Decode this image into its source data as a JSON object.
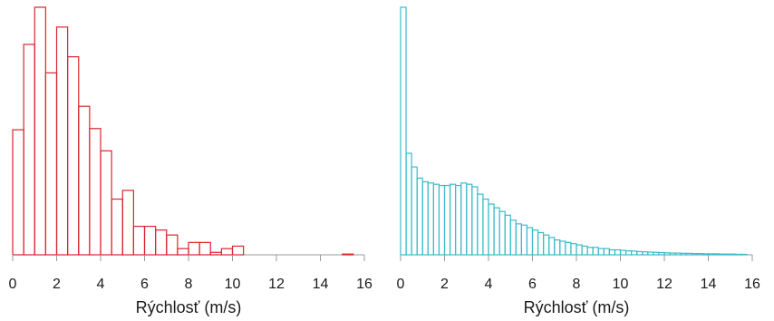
{
  "chart_data": [
    {
      "type": "bar",
      "subtype": "histogram",
      "color": "#d9262e",
      "xlabel": "Rýchlosť (m/s)",
      "xlim": [
        0,
        16
      ],
      "xticks": [
        0,
        2,
        4,
        6,
        8,
        10,
        12,
        14,
        16
      ],
      "grid": false,
      "bin_width": 0.5,
      "bin_edges_start": 0,
      "relative_heights": [
        0.505,
        0.85,
        1.0,
        0.735,
        0.92,
        0.8,
        0.6,
        0.51,
        0.42,
        0.225,
        0.26,
        0.115,
        0.115,
        0.1,
        0.08,
        0.025,
        0.05,
        0.05,
        0.01,
        0.025,
        0.035,
        0,
        0,
        0,
        0,
        0,
        0,
        0,
        0,
        0,
        0.003
      ],
      "notes": "bars shown as outlines; no y-axis scale printed"
    },
    {
      "type": "bar",
      "subtype": "histogram",
      "color": "#3bbcc8",
      "xlabel": "Rýchlosť (m/s)",
      "xlim": [
        0,
        16
      ],
      "xticks": [
        0,
        2,
        4,
        6,
        8,
        10,
        12,
        14,
        16
      ],
      "grid": false,
      "bin_width": 0.25,
      "bin_edges_start": 0,
      "relative_heights": [
        1.0,
        0.41,
        0.355,
        0.31,
        0.295,
        0.29,
        0.285,
        0.28,
        0.28,
        0.285,
        0.28,
        0.29,
        0.285,
        0.275,
        0.245,
        0.225,
        0.205,
        0.19,
        0.175,
        0.16,
        0.14,
        0.125,
        0.12,
        0.11,
        0.1,
        0.09,
        0.08,
        0.07,
        0.06,
        0.055,
        0.05,
        0.045,
        0.04,
        0.035,
        0.03,
        0.03,
        0.025,
        0.025,
        0.02,
        0.02,
        0.018,
        0.016,
        0.015,
        0.013,
        0.012,
        0.011,
        0.01,
        0.009,
        0.008,
        0.007,
        0.007,
        0.006,
        0.006,
        0.005,
        0.005,
        0.004,
        0.004,
        0.004,
        0.003,
        0.003,
        0.003,
        0.002,
        0.002
      ],
      "notes": "bars shown as outlines; no y-axis scale printed"
    }
  ]
}
